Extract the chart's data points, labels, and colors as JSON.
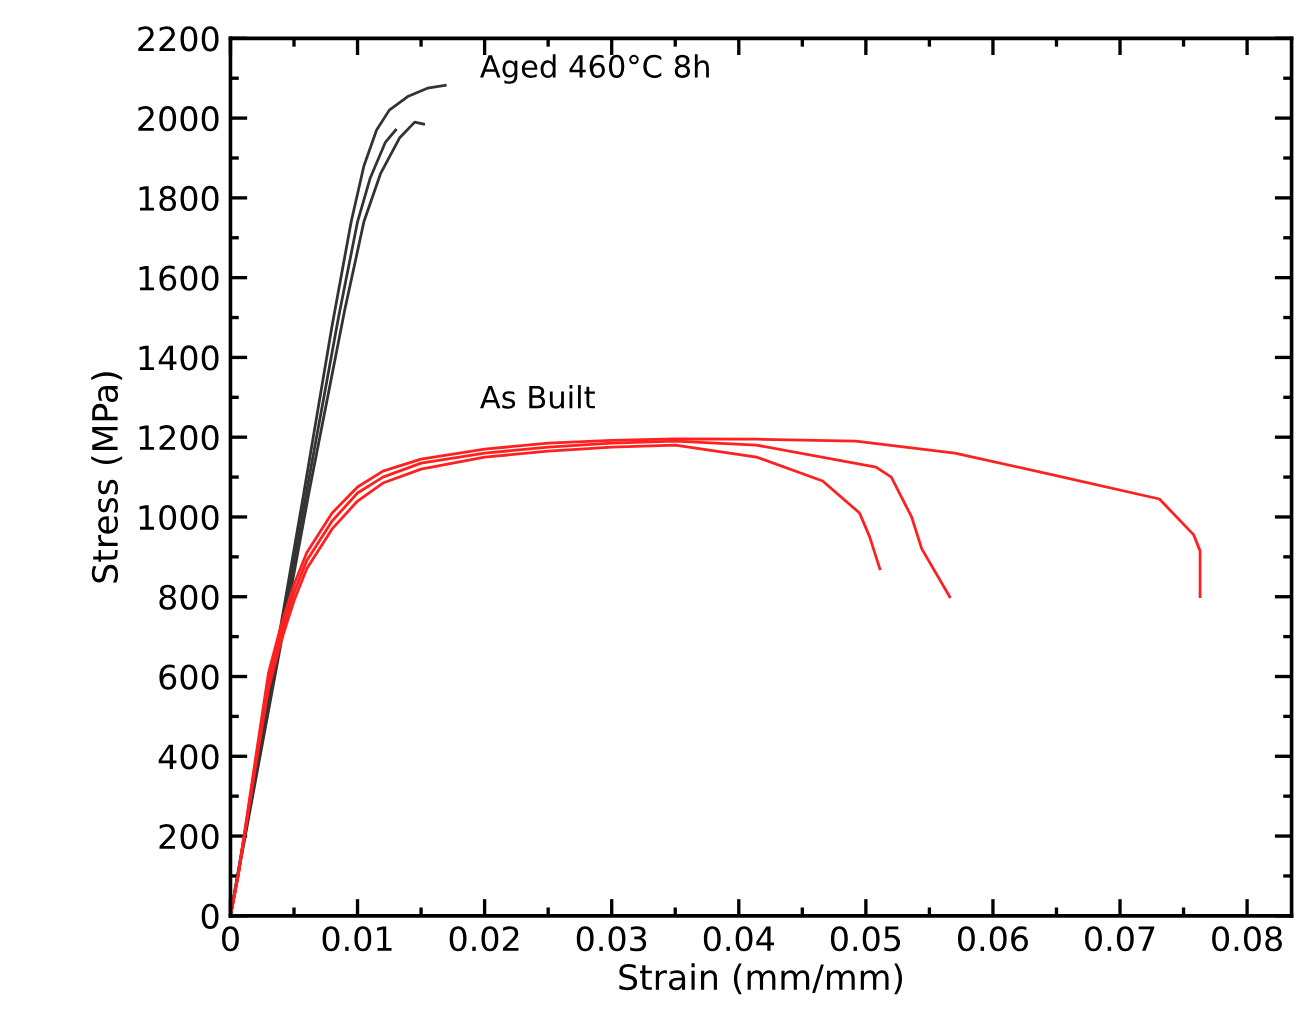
{
  "chart_data": {
    "type": "line",
    "xlabel": "Strain (mm/mm)",
    "ylabel": "Stress (MPa)",
    "xlim": [
      0,
      0.0835
    ],
    "ylim": [
      0,
      2200
    ],
    "xticks": [
      0,
      0.01,
      0.02,
      0.03,
      0.04,
      0.05,
      0.06,
      0.07,
      0.08
    ],
    "yticks": [
      0,
      200,
      400,
      600,
      800,
      1000,
      1200,
      1400,
      1600,
      1800,
      2000,
      2200
    ],
    "grid": false,
    "legend": false,
    "marker": "none",
    "line_style": "solid",
    "series": [
      {
        "color": "#333333",
        "x": [
          0,
          0.0058,
          0.008,
          0.0095,
          0.0105,
          0.0115,
          0.0125,
          0.014,
          0.0155,
          0.0169
        ],
        "values": [
          0,
          1065,
          1480,
          1740,
          1880,
          1970,
          2020,
          2055,
          2075,
          2082
        ]
      },
      {
        "color": "#333333",
        "x": [
          0,
          0.006,
          0.0085,
          0.01,
          0.011,
          0.0122,
          0.013
        ],
        "values": [
          0,
          1065,
          1500,
          1740,
          1850,
          1940,
          1970
        ]
      },
      {
        "color": "#333333",
        "x": [
          0,
          0.0062,
          0.009,
          0.0105,
          0.0118,
          0.0133,
          0.0145,
          0.0152
        ],
        "values": [
          0,
          1065,
          1520,
          1740,
          1860,
          1950,
          1990,
          1985
        ]
      },
      {
        "color": "#ff2020",
        "x": [
          0,
          0.0006,
          0.002,
          0.003,
          0.004,
          0.005,
          0.006,
          0.008,
          0.01,
          0.012,
          0.015,
          0.02,
          0.025,
          0.03,
          0.035,
          0.0414,
          0.0466,
          0.0495,
          0.0503,
          0.0511
        ],
        "values": [
          0,
          100,
          380,
          570,
          690,
          790,
          870,
          970,
          1040,
          1085,
          1120,
          1150,
          1165,
          1175,
          1180,
          1150,
          1090,
          1010,
          950,
          870
        ]
      },
      {
        "color": "#ff2020",
        "x": [
          0,
          0.0006,
          0.002,
          0.003,
          0.004,
          0.005,
          0.006,
          0.008,
          0.01,
          0.012,
          0.015,
          0.02,
          0.025,
          0.03,
          0.035,
          0.0414,
          0.0508,
          0.052,
          0.0536,
          0.0544,
          0.0566
        ],
        "values": [
          0,
          100,
          390,
          590,
          710,
          810,
          890,
          990,
          1060,
          1100,
          1135,
          1160,
          1175,
          1185,
          1190,
          1180,
          1125,
          1100,
          1000,
          920,
          800
        ]
      },
      {
        "color": "#ff2020",
        "x": [
          0,
          0.0006,
          0.002,
          0.003,
          0.004,
          0.005,
          0.006,
          0.008,
          0.01,
          0.012,
          0.015,
          0.02,
          0.025,
          0.03,
          0.035,
          0.0414,
          0.0492,
          0.057,
          0.0648,
          0.0731,
          0.0758,
          0.0763,
          0.0763
        ],
        "values": [
          0,
          100,
          400,
          610,
          730,
          830,
          910,
          1010,
          1075,
          1115,
          1145,
          1170,
          1185,
          1192,
          1196,
          1195,
          1190,
          1160,
          1105,
          1045,
          955,
          915,
          800
        ]
      }
    ],
    "annotations": [
      "Aged 460°C 8h",
      "As Built"
    ]
  }
}
